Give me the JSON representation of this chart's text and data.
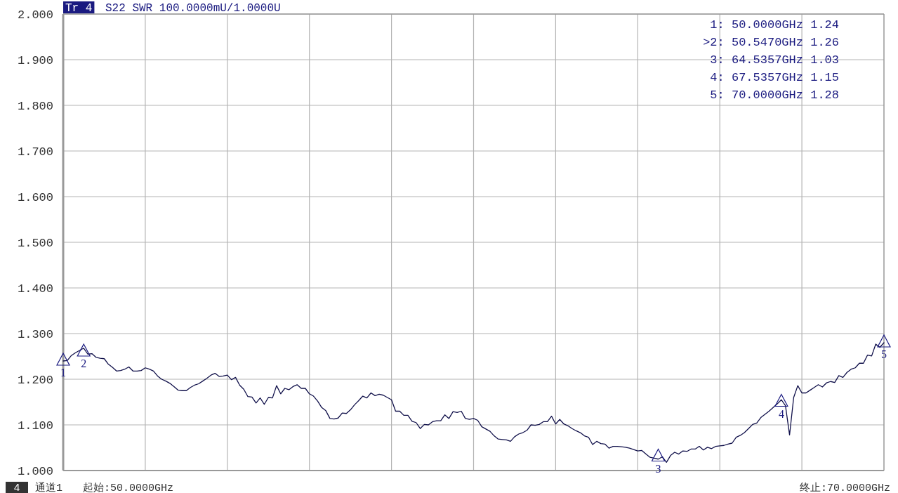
{
  "chart_data": {
    "type": "line",
    "title": "Tr 4",
    "subtitle": "S22 SWR 100.0000mU/1.0000U",
    "ylim": [
      1,
      2
    ],
    "yticks": [
      {
        "value": 1,
        "label": "1.000"
      },
      {
        "value": 1.1,
        "label": "1.100"
      },
      {
        "value": 1.2,
        "label": "1.200"
      },
      {
        "value": 1.3,
        "label": "1.300"
      },
      {
        "value": 1.4,
        "label": "1.400"
      },
      {
        "value": 1.5,
        "label": "1.500"
      },
      {
        "value": 1.6,
        "label": "1.600"
      },
      {
        "value": 1.7,
        "label": "1.700"
      },
      {
        "value": 1.8,
        "label": "1.800"
      },
      {
        "value": 1.9,
        "label": "1.900"
      },
      {
        "value": 2,
        "label": "2.000"
      }
    ],
    "grid": true,
    "marker": "none",
    "line_style": "solid",
    "categories": [
      null,
      null,
      null,
      null,
      null,
      null,
      null,
      null,
      null,
      null,
      null,
      null,
      null,
      null,
      null,
      null,
      null,
      null,
      null,
      null,
      null,
      null,
      null,
      null,
      null,
      null,
      null,
      null,
      null,
      null,
      null,
      null,
      null,
      null,
      null,
      null,
      null,
      null,
      null,
      null,
      null,
      null,
      null,
      null,
      null,
      null,
      null,
      null,
      null,
      null,
      null,
      null,
      null,
      null,
      null,
      null,
      null,
      null,
      null,
      null,
      null,
      null,
      null,
      null,
      null,
      null,
      null,
      null,
      null,
      null,
      null,
      null,
      null,
      null,
      null,
      null,
      null,
      null,
      null,
      null,
      null,
      null,
      null,
      null,
      null,
      null,
      null,
      null,
      null,
      null,
      null,
      null,
      null,
      null,
      null,
      null,
      null,
      null,
      null,
      null,
      null,
      null,
      null,
      null,
      null,
      null,
      null,
      null,
      null,
      null,
      null,
      null,
      null,
      null,
      null,
      null,
      null,
      null,
      null,
      null,
      null,
      null,
      null,
      null,
      null,
      null,
      null,
      null,
      null,
      null,
      null,
      null,
      null,
      null,
      null,
      null,
      null,
      null,
      null,
      null,
      null,
      null,
      null,
      null,
      null,
      null,
      null,
      null,
      null,
      null,
      null,
      null,
      null,
      null,
      null,
      null,
      null,
      null,
      null,
      null,
      null,
      null,
      null,
      null,
      null,
      null,
      null,
      null,
      null,
      null,
      null,
      null,
      null,
      null,
      null,
      null,
      null,
      null,
      null,
      null,
      null,
      null,
      null,
      null,
      null,
      null,
      null,
      null,
      null,
      null,
      null,
      null,
      null,
      null,
      null,
      null,
      null,
      null,
      null,
      null,
      null
    ],
    "series": [
      {
        "color": "#10104a",
        "values": [
          1.24,
          1.241,
          1.252,
          1.258,
          1.263,
          1.268,
          1.255,
          1.256,
          1.248,
          1.246,
          1.245,
          1.233,
          1.226,
          1.218,
          1.219,
          1.222,
          1.227,
          1.218,
          1.218,
          1.219,
          1.225,
          1.222,
          1.218,
          1.207,
          1.2,
          1.196,
          1.191,
          1.184,
          1.176,
          1.175,
          1.175,
          1.182,
          1.187,
          1.19,
          1.196,
          1.202,
          1.209,
          1.213,
          1.206,
          1.207,
          1.209,
          1.199,
          1.204,
          1.187,
          1.178,
          1.162,
          1.161,
          1.148,
          1.159,
          1.145,
          1.16,
          1.159,
          1.186,
          1.168,
          1.18,
          1.177,
          1.184,
          1.188,
          1.18,
          1.18,
          1.168,
          1.163,
          1.152,
          1.138,
          1.131,
          1.114,
          1.113,
          1.115,
          1.126,
          1.125,
          1.133,
          1.144,
          1.153,
          1.163,
          1.159,
          1.17,
          1.164,
          1.167,
          1.165,
          1.16,
          1.155,
          1.13,
          1.13,
          1.121,
          1.121,
          1.108,
          1.105,
          1.092,
          1.101,
          1.1,
          1.107,
          1.109,
          1.109,
          1.122,
          1.114,
          1.129,
          1.127,
          1.13,
          1.114,
          1.112,
          1.114,
          1.11,
          1.096,
          1.091,
          1.086,
          1.076,
          1.069,
          1.068,
          1.067,
          1.064,
          1.074,
          1.08,
          1.083,
          1.088,
          1.1,
          1.099,
          1.101,
          1.107,
          1.107,
          1.119,
          1.102,
          1.112,
          1.102,
          1.098,
          1.092,
          1.087,
          1.083,
          1.076,
          1.073,
          1.057,
          1.064,
          1.059,
          1.058,
          1.049,
          1.053,
          1.053,
          1.052,
          1.051,
          1.049,
          1.046,
          1.043,
          1.044,
          1.036,
          1.029,
          1.027,
          1.025,
          1.03,
          1.018,
          1.033,
          1.04,
          1.036,
          1.043,
          1.042,
          1.047,
          1.047,
          1.053,
          1.045,
          1.051,
          1.048,
          1.053,
          1.054,
          1.055,
          1.058,
          1.06,
          1.073,
          1.077,
          1.083,
          1.092,
          1.101,
          1.104,
          1.116,
          1.123,
          1.13,
          1.138,
          1.146,
          1.155,
          1.142,
          1.078,
          1.16,
          1.186,
          1.17,
          1.17,
          1.176,
          1.182,
          1.188,
          1.183,
          1.192,
          1.195,
          1.193,
          1.208,
          1.204,
          1.215,
          1.222,
          1.225,
          1.235,
          1.235,
          1.253,
          1.251,
          1.277,
          1.27,
          1.28
        ]
      },
      {
        "type": "scatter",
        "color": "#1a1a80",
        "marker": "triangle",
        "values": [
          1.24,
          null,
          null,
          null,
          null,
          1.26,
          null,
          null,
          null,
          null,
          null,
          null,
          null,
          null,
          null,
          null,
          null,
          null,
          null,
          null,
          null,
          null,
          null,
          null,
          null,
          null,
          null,
          null,
          null,
          null,
          null,
          null,
          null,
          null,
          null,
          null,
          null,
          null,
          null,
          null,
          null,
          null,
          null,
          null,
          null,
          null,
          null,
          null,
          null,
          null,
          null,
          null,
          null,
          null,
          null,
          null,
          null,
          null,
          null,
          null,
          null,
          null,
          null,
          null,
          null,
          null,
          null,
          null,
          null,
          null,
          null,
          null,
          null,
          null,
          null,
          null,
          null,
          null,
          null,
          null,
          null,
          null,
          null,
          null,
          null,
          null,
          null,
          null,
          null,
          null,
          null,
          null,
          null,
          null,
          null,
          null,
          null,
          null,
          null,
          null,
          null,
          null,
          null,
          null,
          null,
          null,
          null,
          null,
          null,
          null,
          null,
          null,
          null,
          null,
          null,
          null,
          null,
          null,
          null,
          null,
          null,
          null,
          null,
          null,
          null,
          null,
          null,
          null,
          null,
          null,
          null,
          null,
          null,
          null,
          null,
          null,
          null,
          null,
          null,
          null,
          null,
          null,
          null,
          null,
          null,
          1.03,
          null,
          null,
          null,
          null,
          null,
          null,
          null,
          null,
          null,
          null,
          null,
          null,
          null,
          null,
          null,
          null,
          null,
          null,
          null,
          null,
          null,
          null,
          null,
          null,
          null,
          null,
          null,
          null,
          null,
          1.15,
          null,
          null,
          null,
          null,
          null,
          null,
          null,
          null,
          null,
          null,
          null,
          null,
          null,
          null,
          null,
          null,
          null,
          null,
          null,
          null,
          null,
          null,
          null,
          null,
          1.28
        ]
      }
    ],
    "annotations": [
      {
        "text": "1",
        "y": 1.24
      },
      {
        "text": "2",
        "y": 1.26
      },
      {
        "text": "3",
        "y": 1.03
      },
      {
        "text": "4",
        "y": 1.15
      },
      {
        "text": "5",
        "y": 1.28
      },
      "1:   50.0000GHz 1.24",
      ">2:   50.5470GHz 1.26",
      "3:   64.5357GHz 1.03",
      "4:   67.5357GHz 1.15",
      "5:   70.0000GHz 1.28",
      "4",
      "通道1",
      "起始:50.0000GHz",
      "终止:70.0000GHz"
    ]
  }
}
